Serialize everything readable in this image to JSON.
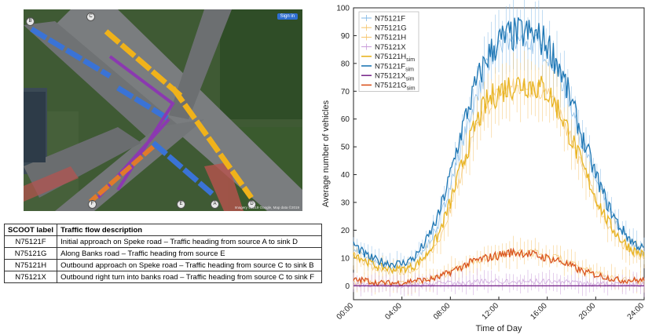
{
  "colors": {
    "N75121F": "#1f77b4",
    "N75121G": "#f0a500",
    "N75121H": "#e8b422",
    "N75121X": "#7b2d8e",
    "N75121F_obs": "#7fb7e6",
    "N75121G_obs": "#f6c46a",
    "N75121X_obs": "#c79ad8",
    "N75121G_sim": "#d9541e"
  },
  "map": {
    "button_label": "Sign in",
    "credit": "Imagery ©2019 Google, Map data ©2019",
    "markers": [
      "B",
      "C",
      "A",
      "D",
      "E",
      "F"
    ]
  },
  "table": {
    "headers": [
      "SCOOT label",
      "Traffic flow description"
    ],
    "rows": [
      [
        "N75121F",
        "Initial approach on Speke road – Traffic heading from source A to sink D"
      ],
      [
        "N75121G",
        "Along Banks road – Traffic heading from source E"
      ],
      [
        "N75121H",
        "Outbound approach on Speke road – Traffic heading from source C to sink B"
      ],
      [
        "N75121X",
        "Outbound right turn into banks road – Traffic heading from source C to sink F"
      ]
    ]
  },
  "chart_data": {
    "type": "line",
    "xlabel": "Time of Day",
    "ylabel": "Average number of vehicles",
    "x_ticks": [
      "00:00",
      "04:00",
      "08:00",
      "12:00",
      "16:00",
      "20:00",
      "24:00"
    ],
    "y_ticks": [
      0,
      10,
      20,
      30,
      40,
      50,
      60,
      70,
      80,
      90,
      100
    ],
    "xlim": [
      0,
      24
    ],
    "ylim": [
      -5,
      100
    ],
    "grid": false,
    "legend_position": "top-left",
    "hours": [
      0,
      1,
      2,
      3,
      4,
      5,
      6,
      7,
      8,
      9,
      10,
      11,
      12,
      13,
      14,
      15,
      16,
      17,
      18,
      19,
      20,
      21,
      22,
      23,
      24
    ],
    "series": [
      {
        "name": "N75121F",
        "kind": "observed",
        "color_key": "N75121F_obs",
        "values": [
          14,
          10,
          8,
          7,
          7,
          9,
          14,
          22,
          36,
          52,
          66,
          78,
          86,
          88,
          88,
          87,
          84,
          76,
          64,
          50,
          38,
          28,
          20,
          15,
          12
        ]
      },
      {
        "name": "N75121G",
        "kind": "observed",
        "color_key": "N75121G_obs",
        "values": [
          1,
          1,
          1,
          1,
          1,
          1,
          2,
          3,
          5,
          7,
          9,
          10,
          11,
          12,
          12,
          12,
          11,
          10,
          8,
          6,
          5,
          3,
          2,
          2,
          1
        ]
      },
      {
        "name": "N75121H",
        "kind": "observed",
        "color_key": "N75121G_obs",
        "values": [
          11,
          8,
          6,
          5,
          5,
          6,
          10,
          16,
          28,
          42,
          55,
          64,
          69,
          71,
          72,
          71,
          69,
          62,
          52,
          41,
          31,
          22,
          16,
          12,
          10
        ]
      },
      {
        "name": "N75121X",
        "kind": "observed",
        "color_key": "N75121X_obs",
        "values": [
          0.5,
          0.4,
          0.3,
          0.3,
          0.3,
          0.3,
          0.5,
          0.8,
          1,
          1.2,
          1.3,
          1.4,
          1.5,
          1.5,
          1.5,
          1.5,
          1.4,
          1.3,
          1.1,
          0.9,
          0.7,
          0.6,
          0.5,
          0.4,
          0.4
        ]
      },
      {
        "name": "N75121H_sim",
        "kind": "sim",
        "color_key": "N75121H",
        "values": [
          12,
          9,
          7,
          6,
          6,
          7,
          11,
          18,
          30,
          44,
          57,
          66,
          70,
          72,
          73,
          72,
          70,
          63,
          53,
          42,
          32,
          23,
          17,
          13,
          11
        ]
      },
      {
        "name": "N75121F_sim",
        "kind": "sim",
        "color_key": "N75121F",
        "values": [
          15,
          11,
          9,
          8,
          8,
          10,
          16,
          25,
          40,
          57,
          71,
          82,
          88,
          90,
          91,
          90,
          87,
          79,
          66,
          52,
          40,
          29,
          21,
          16,
          13
        ]
      },
      {
        "name": "N75121X_sim",
        "kind": "sim",
        "color_key": "N75121X",
        "values": [
          0,
          0,
          0,
          0,
          0,
          0,
          0,
          0,
          0,
          0,
          0,
          0,
          0,
          0,
          0,
          0,
          0,
          0,
          0,
          0,
          0,
          0,
          0,
          0,
          0
        ]
      },
      {
        "name": "N75121G_sim",
        "kind": "sim",
        "color_key": "N75121G_sim",
        "values": [
          2,
          2,
          1,
          1,
          1,
          2,
          2,
          3,
          5,
          7,
          9,
          10,
          11,
          12,
          12,
          11,
          10,
          9,
          7,
          5,
          4,
          3,
          2,
          2,
          2
        ]
      }
    ],
    "legend": [
      {
        "label": "N75121F",
        "sub": "",
        "color_key": "N75121F_obs",
        "errorbar": true
      },
      {
        "label": "N75121G",
        "sub": "",
        "color_key": "N75121G_obs",
        "errorbar": true
      },
      {
        "label": "N75121H",
        "sub": "",
        "color_key": "N75121G_obs",
        "errorbar": true
      },
      {
        "label": "N75121X",
        "sub": "",
        "color_key": "N75121X_obs",
        "errorbar": true
      },
      {
        "label": "N75121H",
        "sub": "sim",
        "color_key": "N75121H",
        "errorbar": false
      },
      {
        "label": "N75121F",
        "sub": "sim",
        "color_key": "N75121F",
        "errorbar": false
      },
      {
        "label": "N75121X",
        "sub": "sim",
        "color_key": "N75121X",
        "errorbar": false
      },
      {
        "label": "N75121G",
        "sub": "sim",
        "color_key": "N75121G_sim",
        "errorbar": false
      }
    ]
  }
}
